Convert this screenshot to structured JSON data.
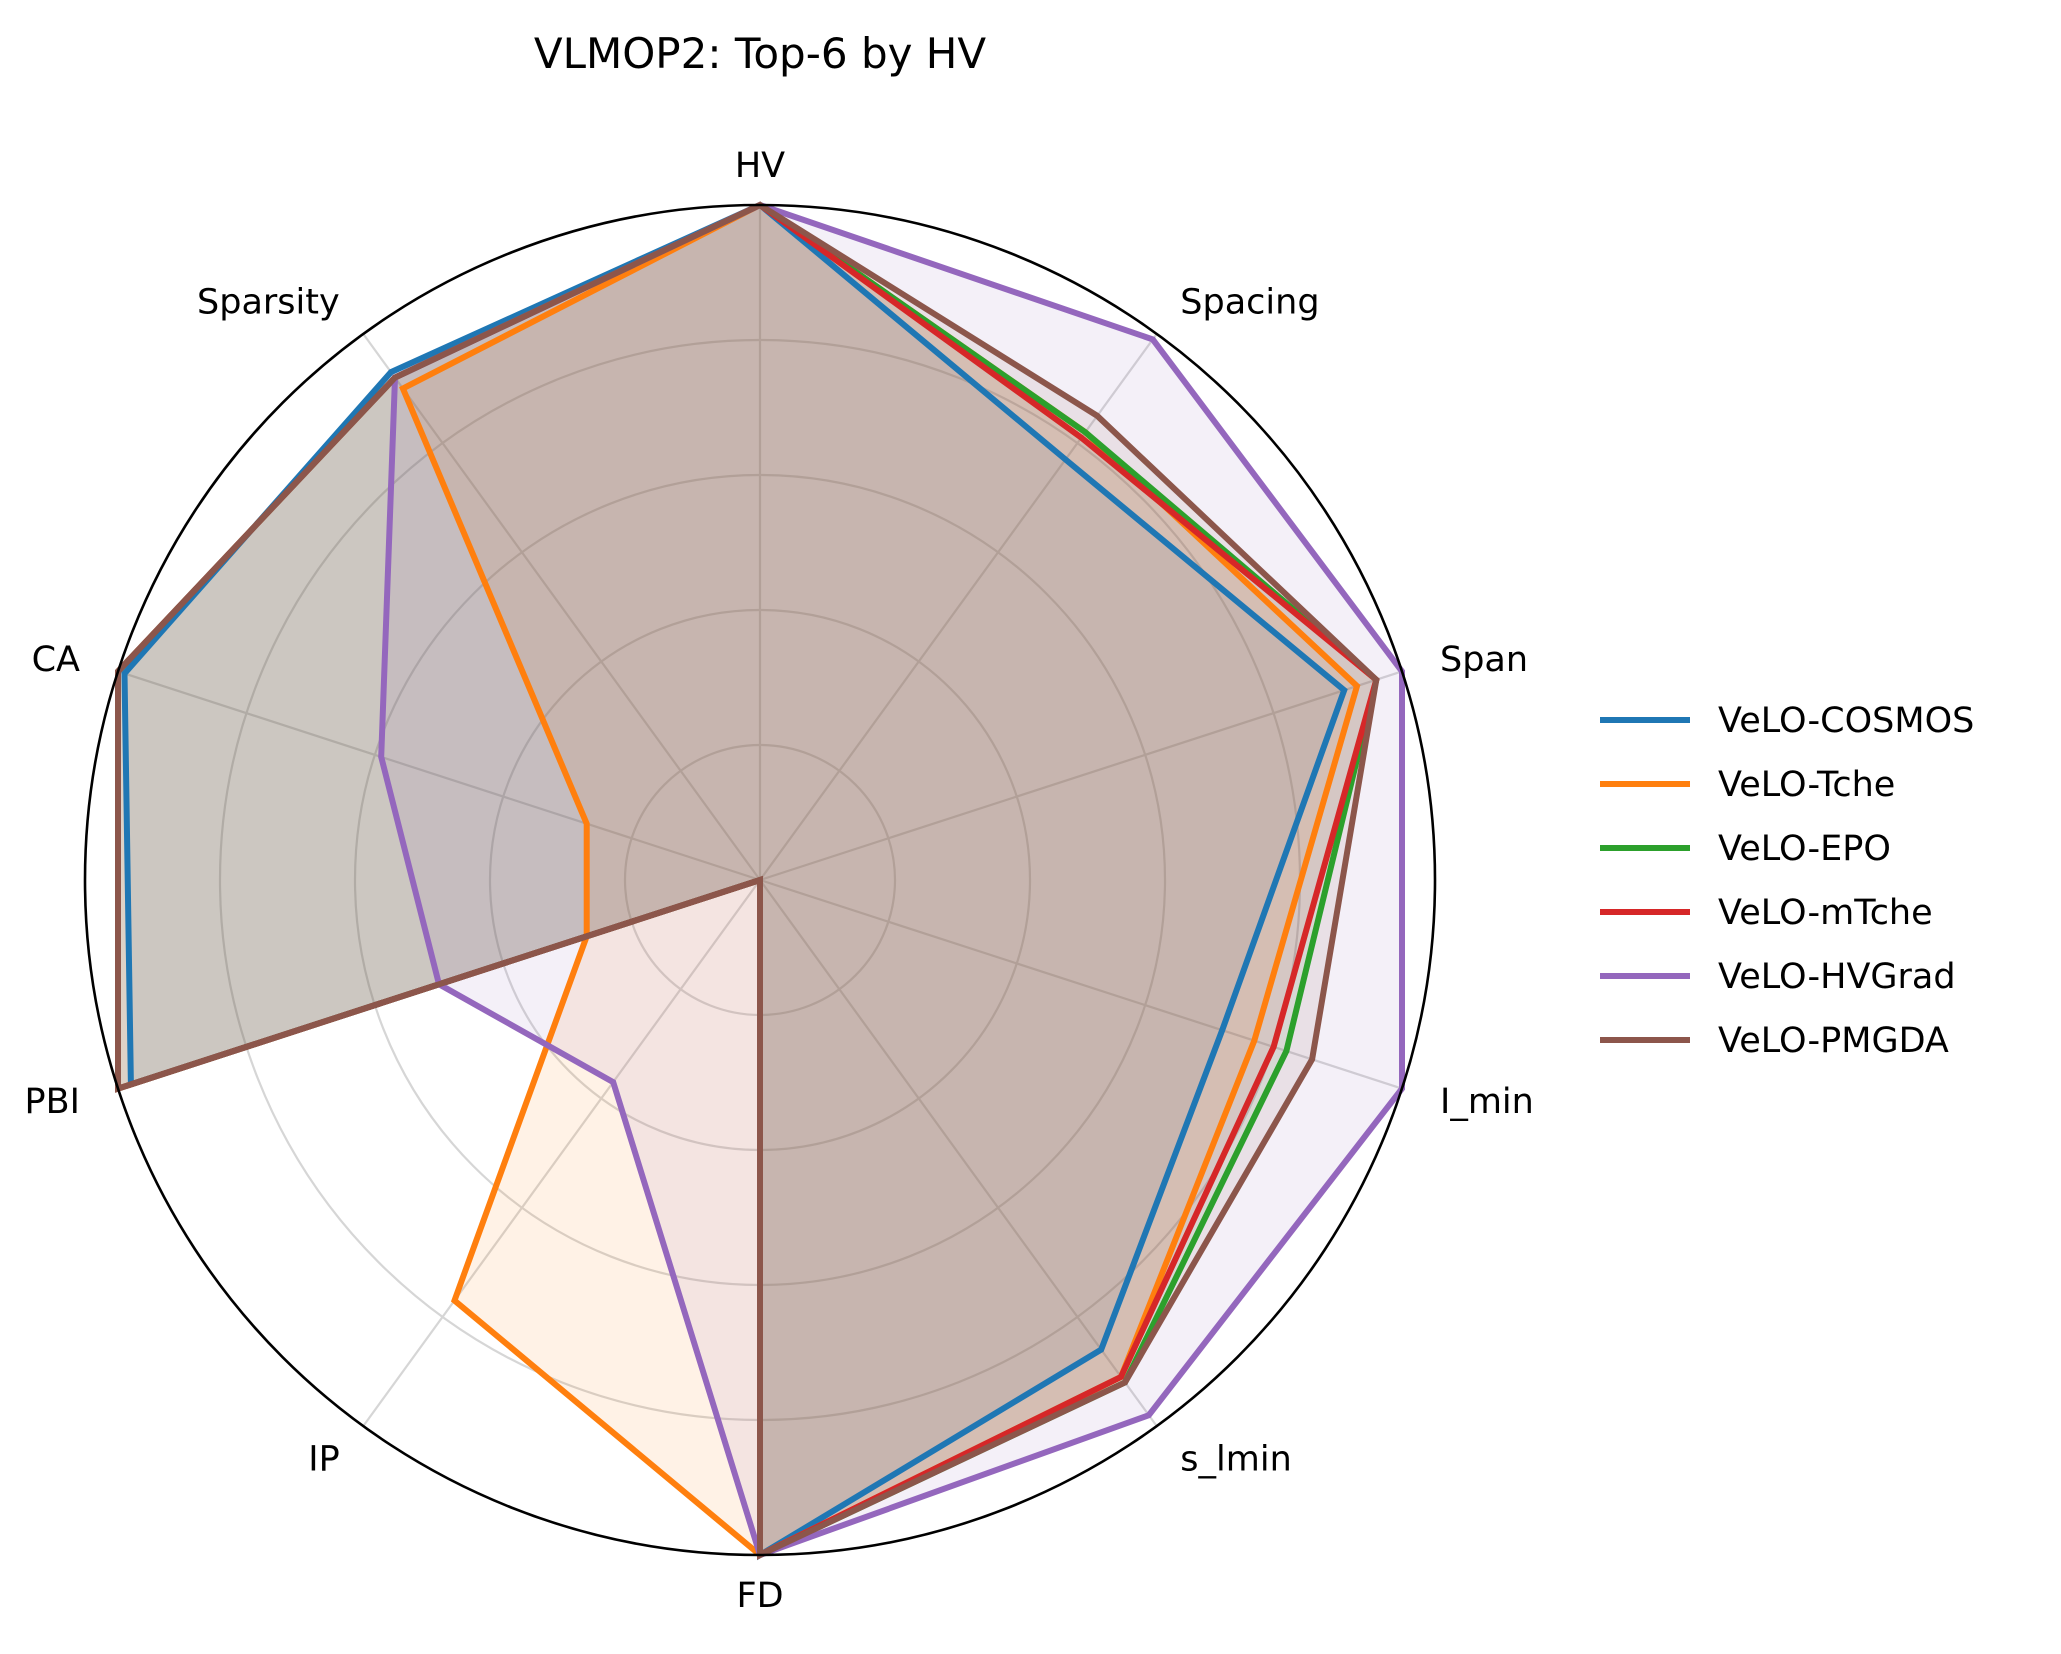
{
  "chart_data": {
    "type": "radar",
    "title": "VLMOP2: Top-6 by HV",
    "axes": [
      "HV",
      "Spacing",
      "Span",
      "I_min",
      "s_lmin",
      "FD",
      "IP",
      "PBI",
      "CA",
      "Sparsity"
    ],
    "range": [
      0,
      1
    ],
    "grid": true,
    "legend_position": "right",
    "series": [
      {
        "name": "VeLO-COSMOS",
        "color": "#1f77b4",
        "values": [
          1.0,
          0.77,
          0.91,
          0.72,
          0.86,
          1.0,
          0.0,
          0.98,
          0.99,
          0.93
        ]
      },
      {
        "name": "VeLO-Tche",
        "color": "#ff7f0e",
        "values": [
          1.0,
          0.82,
          0.93,
          0.77,
          0.91,
          1.0,
          0.77,
          0.27,
          0.27,
          0.9
        ]
      },
      {
        "name": "VeLO-EPO",
        "color": "#2ca02c",
        "values": [
          1.0,
          0.82,
          0.96,
          0.82,
          0.92,
          1.0,
          0.0,
          1.0,
          1.0,
          0.92
        ]
      },
      {
        "name": "VeLO-mTche",
        "color": "#d62728",
        "values": [
          1.0,
          0.81,
          0.96,
          0.8,
          0.91,
          1.0,
          0.0,
          1.0,
          1.0,
          0.92
        ]
      },
      {
        "name": "VeLO-HVGrad",
        "color": "#9467bd",
        "values": [
          1.0,
          0.99,
          1.0,
          1.0,
          0.98,
          1.0,
          0.37,
          0.5,
          0.59,
          0.92
        ]
      },
      {
        "name": "VeLO-PMGDA",
        "color": "#8c564b",
        "values": [
          1.0,
          0.85,
          0.96,
          0.86,
          0.92,
          1.0,
          0.0,
          1.0,
          1.0,
          0.92
        ]
      }
    ]
  }
}
